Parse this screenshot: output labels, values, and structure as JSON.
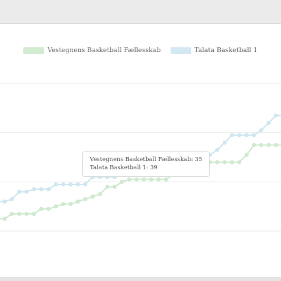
{
  "chart_data": {
    "type": "line",
    "series": [
      {
        "name": "Vestegnens Basketball Fællesskab",
        "color": "#cfe9cf",
        "values": [
          5,
          5,
          7,
          7,
          7,
          7,
          9,
          9,
          10,
          11,
          11,
          12,
          13,
          14,
          15,
          18,
          18,
          20,
          21,
          21,
          21,
          21,
          21,
          21,
          23,
          23,
          25,
          28,
          28,
          28,
          28,
          28,
          28,
          28,
          31,
          35,
          35,
          35,
          35,
          35
        ]
      },
      {
        "name": "Talata Basketball 1",
        "color": "#cfe6f0",
        "values": [
          12,
          12,
          13,
          16,
          16,
          17,
          17,
          17,
          19,
          19,
          19,
          19,
          19,
          22,
          22,
          22,
          22,
          23,
          23,
          23,
          23,
          23,
          24,
          24,
          24,
          24,
          26,
          28,
          29,
          31,
          33,
          36,
          39,
          39,
          39,
          39,
          41,
          44,
          47,
          47
        ]
      }
    ],
    "ylim": [
      -10,
      70
    ],
    "grid": true,
    "legend_position": "top-center",
    "tooltip": {
      "lines": [
        "Vestegnens Basketball Fællesskab: 35",
        "Talata Basketball 1: 39"
      ]
    }
  }
}
